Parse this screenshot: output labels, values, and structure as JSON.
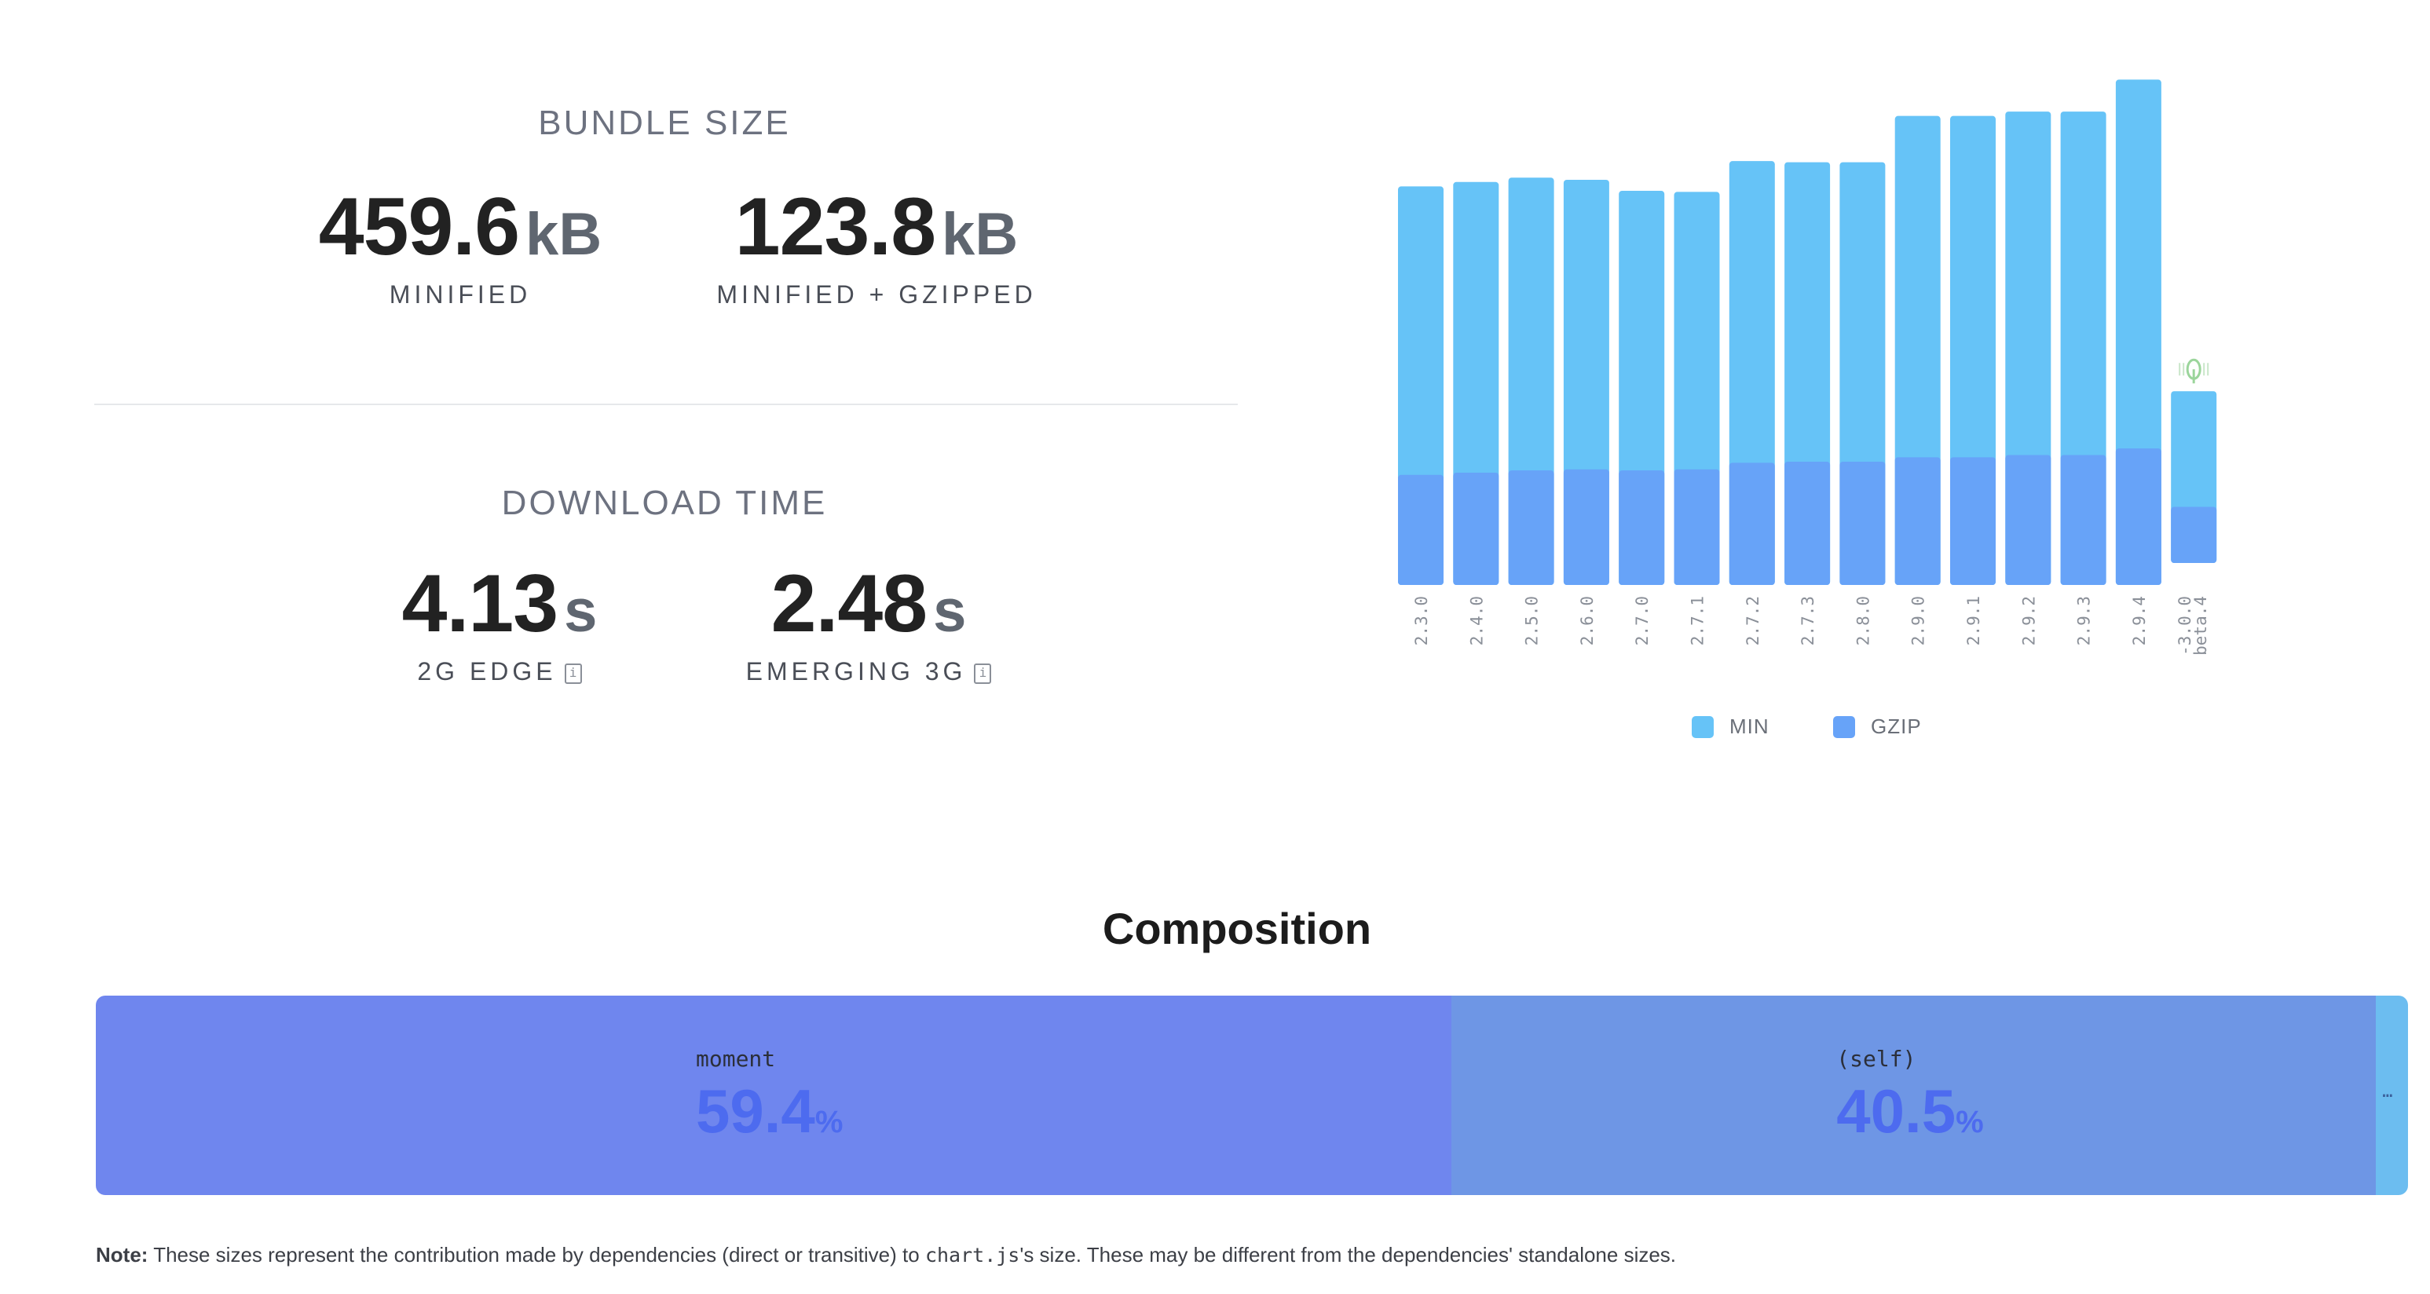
{
  "bundle_size": {
    "title": "BUNDLE SIZE",
    "minified": {
      "value": "459.6",
      "unit": "kB",
      "label": "MINIFIED"
    },
    "gzipped": {
      "value": "123.8",
      "unit": "kB",
      "label": "MINIFIED + GZIPPED"
    }
  },
  "download_time": {
    "title": "DOWNLOAD TIME",
    "edge": {
      "value": "4.13",
      "unit": "s",
      "label": "2G EDGE",
      "info_icon": "info-icon"
    },
    "emerging": {
      "value": "2.48",
      "unit": "s",
      "label": "EMERGING 3G",
      "info_icon": "info-icon"
    }
  },
  "colors": {
    "min": "#66c3f7",
    "gzip": "#67a3f8",
    "moment": "#6f86ee",
    "self": "#6e96e5",
    "rest": "#6cbdf0"
  },
  "chart_data": {
    "type": "bar",
    "categories": [
      "2.3.0",
      "2.4.0",
      "2.5.0",
      "2.6.0",
      "2.7.0",
      "2.7.1",
      "2.7.2",
      "2.7.3",
      "2.8.0",
      "2.9.0",
      "2.9.1",
      "2.9.2",
      "2.9.3",
      "2.9.4",
      "3.0.0-beta.4"
    ],
    "series": [
      {
        "name": "MIN",
        "values": [
          362,
          366,
          370,
          368,
          358,
          357,
          385,
          384,
          384,
          426,
          426,
          430,
          430,
          459,
          156
        ]
      },
      {
        "name": "GZIP",
        "values": [
          100,
          102,
          104,
          105,
          104,
          105,
          111,
          112,
          112,
          116,
          116,
          118,
          118,
          124,
          51
        ]
      }
    ],
    "xlabel": "",
    "ylabel": "",
    "ylim": [
      0,
      460
    ],
    "legend_position": "bottom",
    "annotation_icon": "tree-shake-icon"
  },
  "composition": {
    "title": "Composition",
    "segments": [
      {
        "name": "moment",
        "percent": "59.4",
        "share": 59.4
      },
      {
        "name": "(self)",
        "percent": "40.5",
        "share": 40.5
      },
      {
        "name": "…",
        "share": 1.4
      }
    ],
    "pct_sign": "%"
  },
  "note": {
    "bold": "Note:",
    "text_a": " These sizes represent the contribution made by dependencies (direct or transitive) to ",
    "code": "chart.js",
    "text_b": "'s size. These may be different from the dependencies' standalone sizes."
  }
}
